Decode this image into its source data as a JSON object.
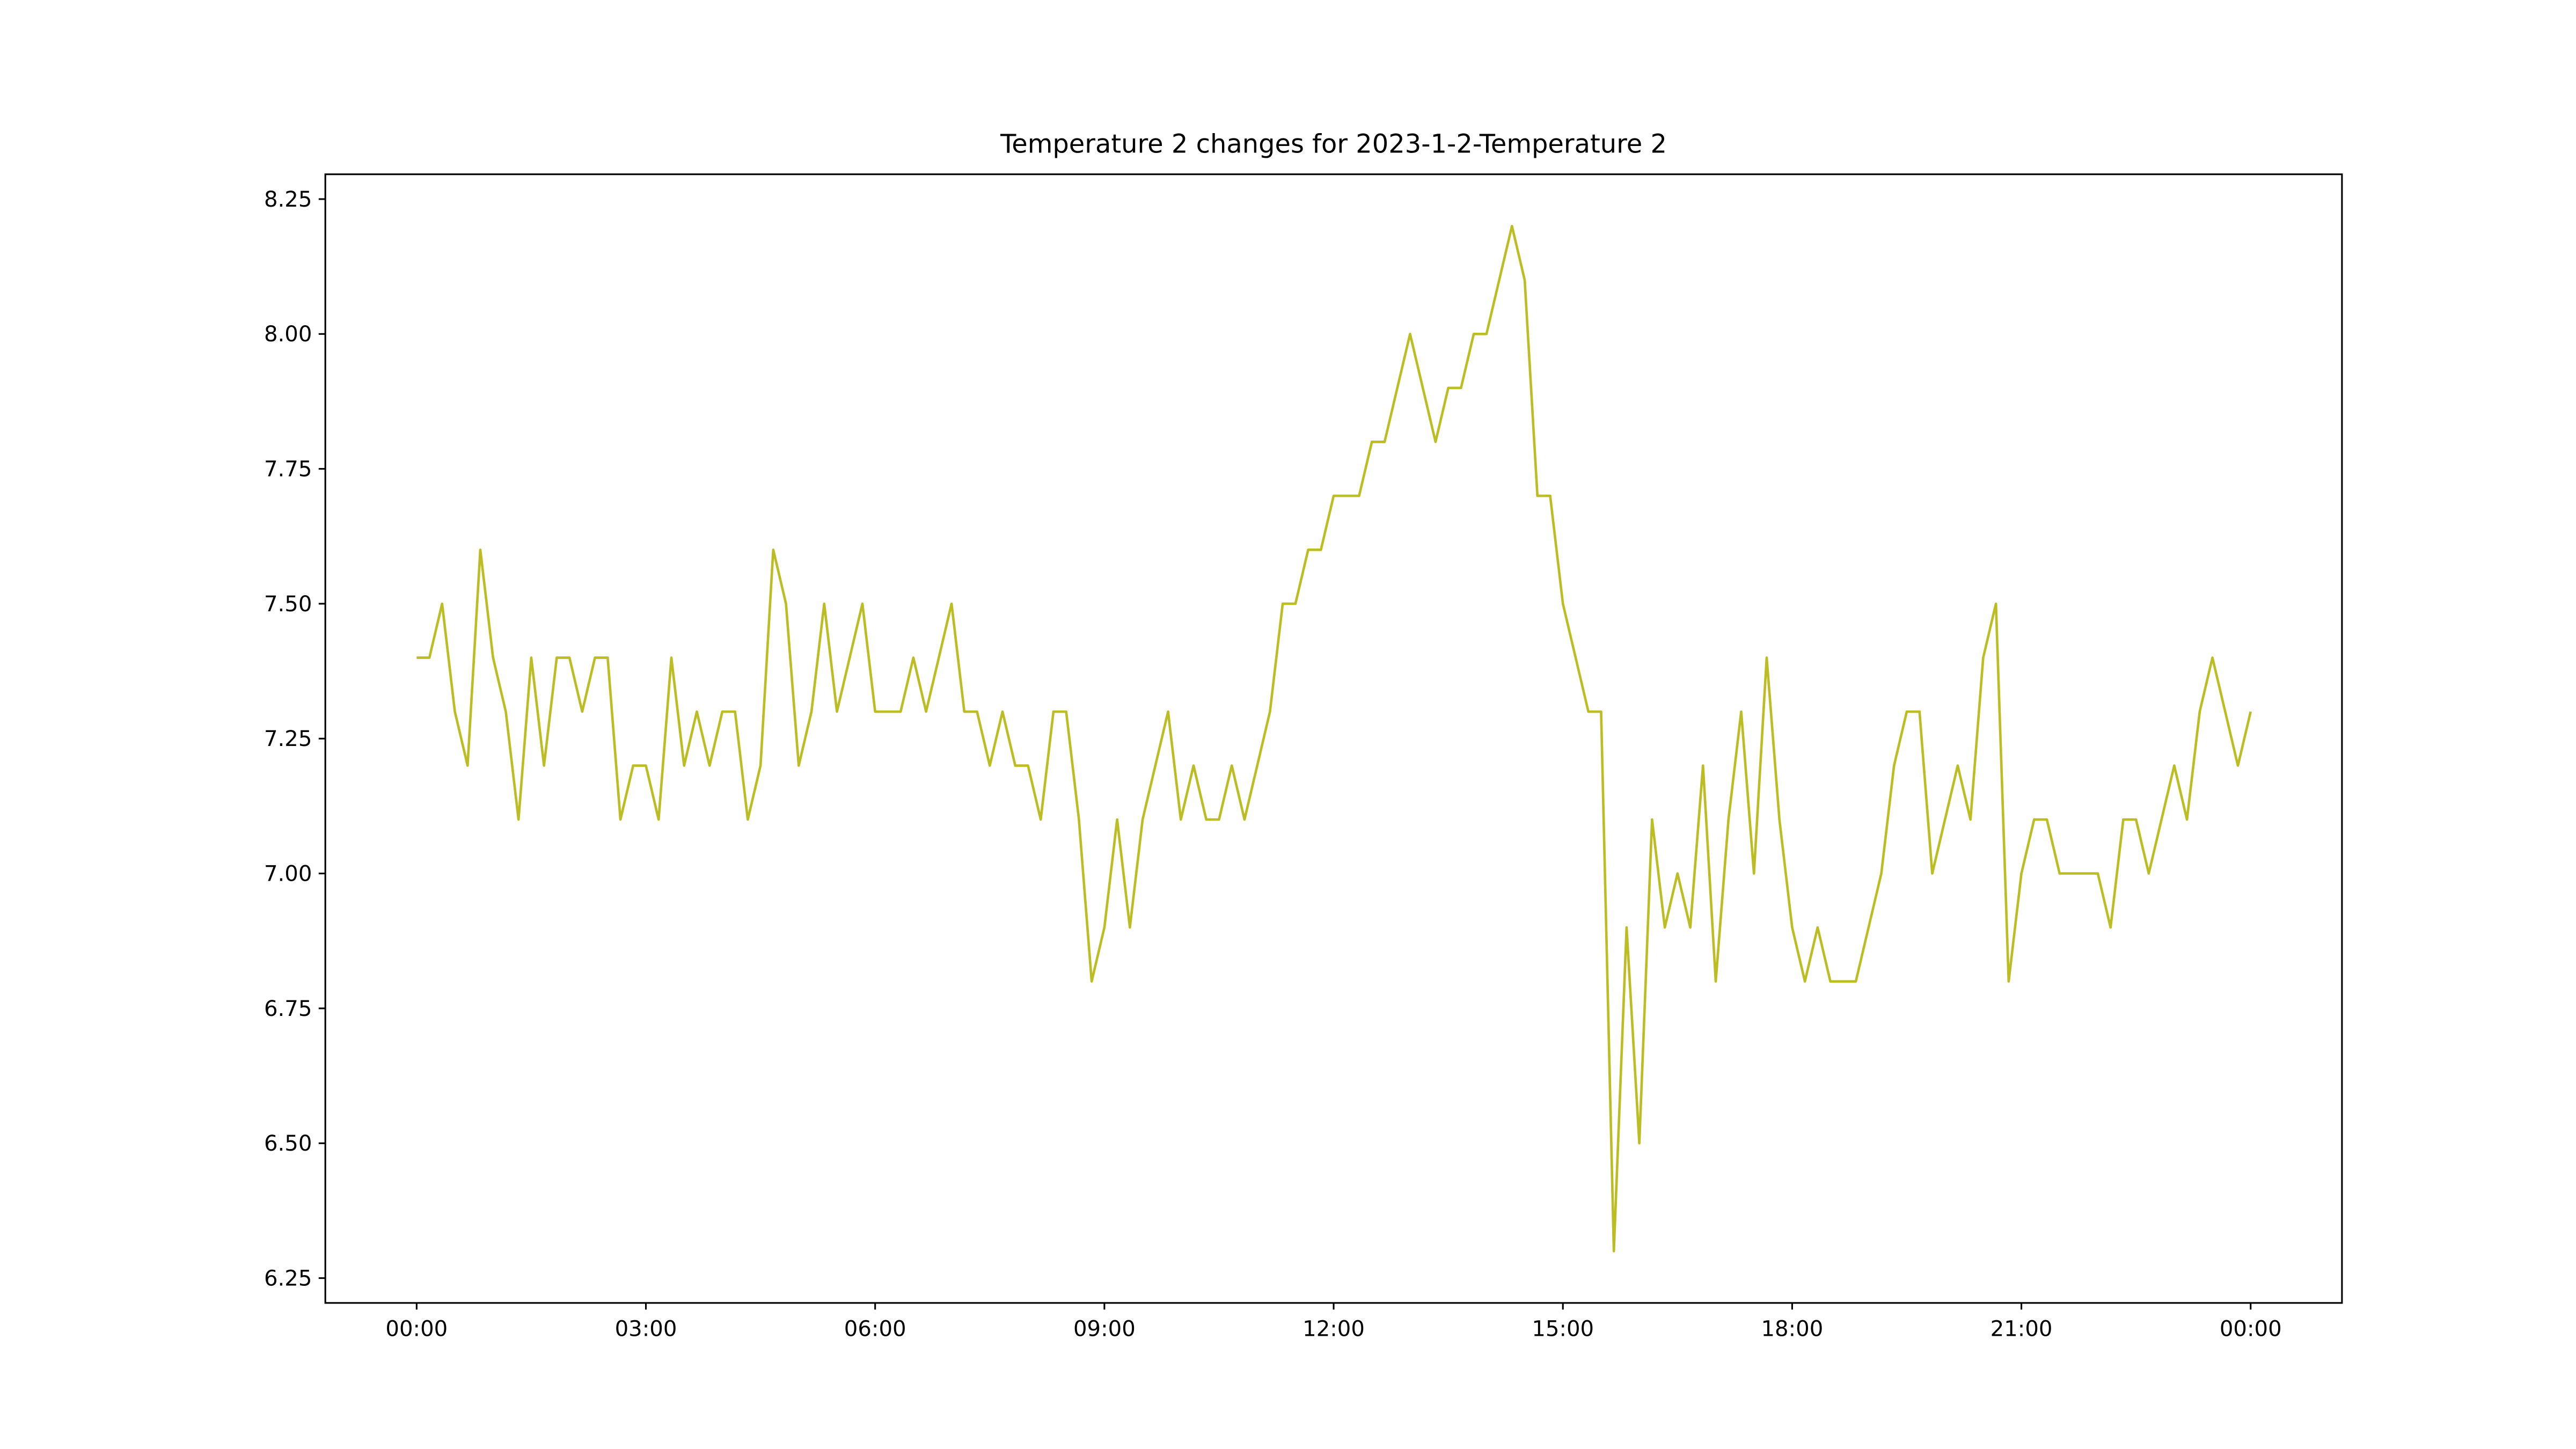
{
  "chart_data": {
    "type": "line",
    "title": "Temperature 2 changes for 2023-1-2-Temperature 2",
    "x": [
      0,
      10,
      20,
      30,
      40,
      50,
      60,
      70,
      80,
      90,
      100,
      110,
      120,
      130,
      140,
      150,
      160,
      170,
      180,
      190,
      200,
      210,
      220,
      230,
      240,
      250,
      260,
      270,
      280,
      290,
      300,
      310,
      320,
      330,
      340,
      350,
      360,
      370,
      380,
      390,
      400,
      410,
      420,
      430,
      440,
      450,
      460,
      470,
      480,
      490,
      500,
      510,
      520,
      530,
      540,
      550,
      560,
      570,
      580,
      590,
      600,
      610,
      620,
      630,
      640,
      650,
      660,
      670,
      680,
      690,
      700,
      710,
      720,
      730,
      740,
      750,
      760,
      770,
      780,
      790,
      800,
      810,
      820,
      830,
      840,
      850,
      860,
      870,
      880,
      890,
      900,
      910,
      920,
      930,
      940,
      950,
      960,
      970,
      980,
      990,
      1000,
      1010,
      1020,
      1030,
      1040,
      1050,
      1060,
      1070,
      1080,
      1090,
      1100,
      1110,
      1120,
      1130,
      1140,
      1150,
      1160,
      1170,
      1180,
      1190,
      1200,
      1210,
      1220,
      1230,
      1240,
      1250,
      1260,
      1270,
      1280,
      1290,
      1300,
      1310,
      1320,
      1330,
      1340,
      1350,
      1360,
      1370,
      1380,
      1390,
      1400,
      1410,
      1420,
      1430,
      1440
    ],
    "series": [
      {
        "name": "Temperature 2",
        "color": "#bcbd22",
        "values": [
          7.4,
          7.4,
          7.5,
          7.3,
          7.2,
          7.6,
          7.4,
          7.3,
          7.1,
          7.4,
          7.2,
          7.4,
          7.4,
          7.3,
          7.4,
          7.4,
          7.1,
          7.2,
          7.2,
          7.1,
          7.4,
          7.2,
          7.3,
          7.2,
          7.3,
          7.3,
          7.1,
          7.2,
          7.6,
          7.5,
          7.2,
          7.3,
          7.5,
          7.3,
          7.4,
          7.5,
          7.3,
          7.3,
          7.3,
          7.4,
          7.3,
          7.4,
          7.5,
          7.3,
          7.3,
          7.2,
          7.3,
          7.2,
          7.2,
          7.1,
          7.3,
          7.3,
          7.1,
          6.8,
          6.9,
          7.1,
          6.9,
          7.1,
          7.2,
          7.3,
          7.1,
          7.2,
          7.1,
          7.1,
          7.2,
          7.1,
          7.2,
          7.3,
          7.5,
          7.5,
          7.6,
          7.6,
          7.7,
          7.7,
          7.7,
          7.8,
          7.8,
          7.9,
          8.0,
          7.9,
          7.8,
          7.9,
          7.9,
          8.0,
          8.0,
          8.1,
          8.2,
          8.1,
          7.7,
          7.7,
          7.5,
          7.4,
          7.3,
          7.3,
          6.3,
          6.9,
          6.5,
          7.1,
          6.9,
          7.0,
          6.9,
          7.2,
          6.8,
          7.1,
          7.3,
          7.0,
          7.4,
          7.1,
          6.9,
          6.8,
          6.9,
          6.8,
          6.8,
          6.8,
          6.9,
          7.0,
          7.2,
          7.3,
          7.3,
          7.0,
          7.1,
          7.2,
          7.1,
          7.4,
          7.5,
          6.8,
          7.0,
          7.1,
          7.1,
          7.0,
          7.0,
          7.0,
          7.0,
          6.9,
          7.1,
          7.1,
          7.0,
          7.1,
          7.2,
          7.1,
          7.3,
          7.4,
          7.3,
          7.2,
          7.3
        ]
      }
    ],
    "xlim": [
      -71.7,
      1511.7
    ],
    "xticks": [
      {
        "value": 0,
        "label": "00:00"
      },
      {
        "value": 180,
        "label": "03:00"
      },
      {
        "value": 360,
        "label": "06:00"
      },
      {
        "value": 540,
        "label": "09:00"
      },
      {
        "value": 720,
        "label": "12:00"
      },
      {
        "value": 900,
        "label": "15:00"
      },
      {
        "value": 1080,
        "label": "18:00"
      },
      {
        "value": 1260,
        "label": "21:00"
      },
      {
        "value": 1440,
        "label": "00:00"
      }
    ],
    "ylim": [
      6.204,
      8.296
    ],
    "yticks": [
      6.25,
      {
        "value": 6.5,
        "label": "6.50"
      },
      6.75,
      {
        "value": 7.0,
        "label": "7.00"
      },
      7.25,
      {
        "value": 7.5,
        "label": "7.50"
      },
      7.75,
      {
        "value": 8.0,
        "label": "8.00"
      },
      8.25
    ]
  }
}
